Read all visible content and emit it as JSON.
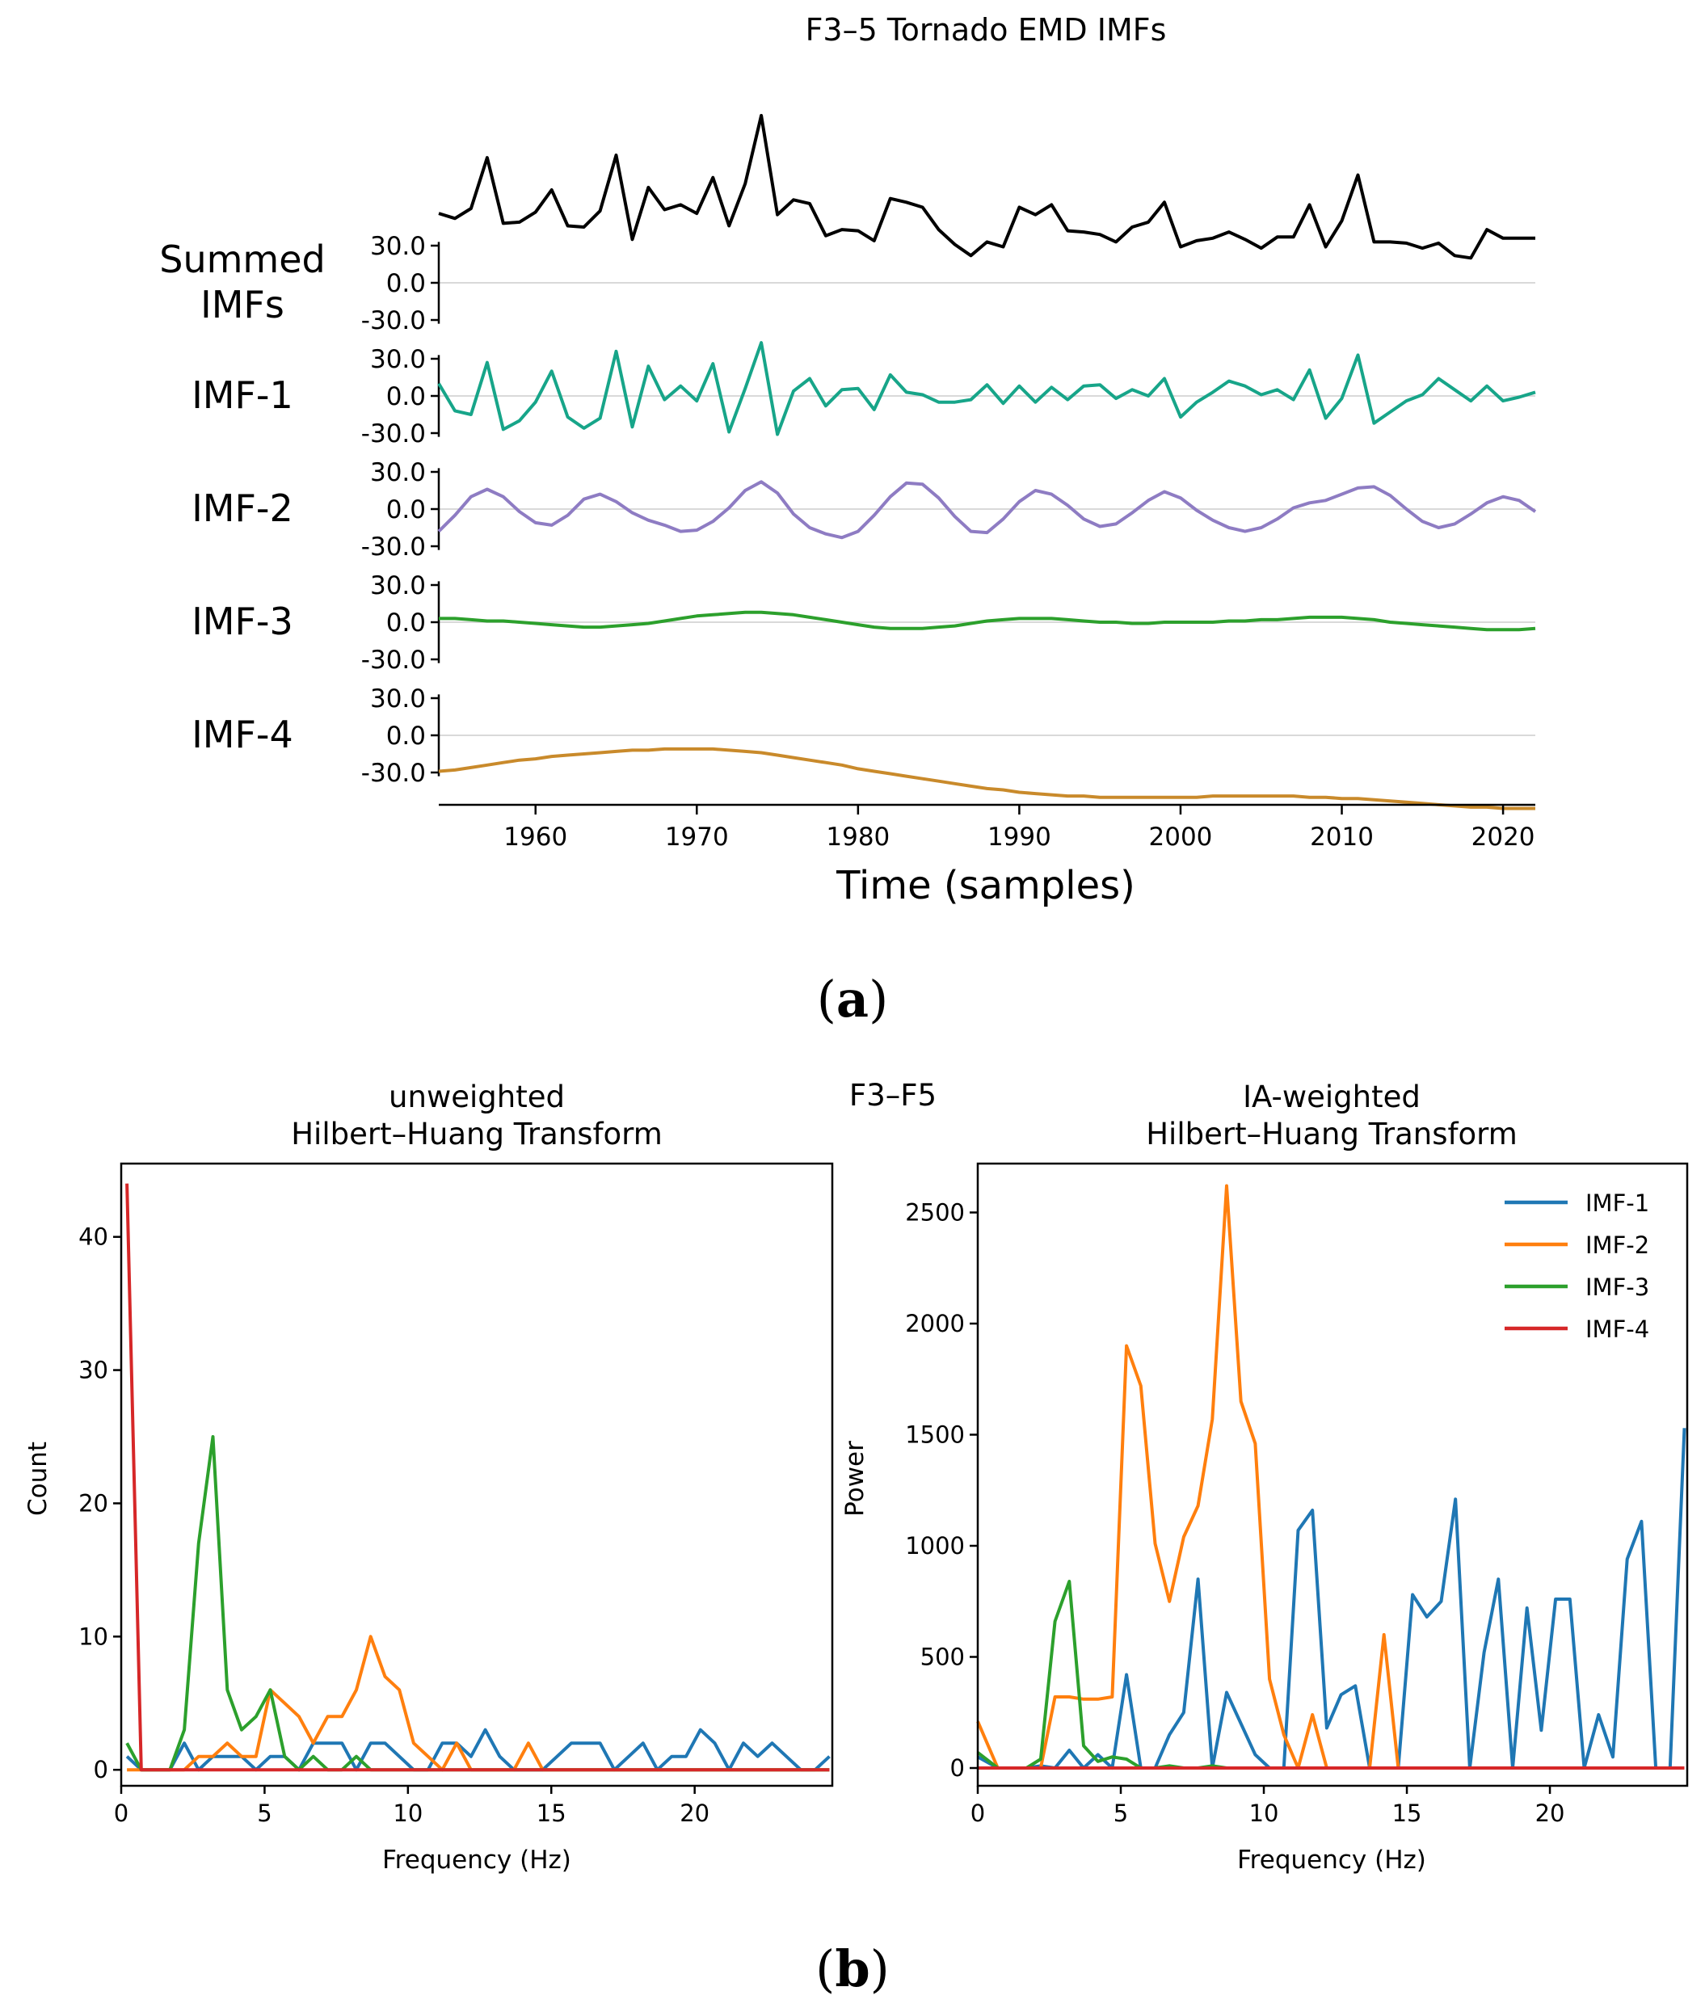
{
  "panel_labels": {
    "a": "a",
    "b": "b"
  },
  "colors": {
    "summed": "#000000",
    "imf1_top": "#17a589",
    "imf2_top": "#8e7cc3",
    "imf3_top": "#2ca02c",
    "imf4_top": "#c98a2b",
    "imf1": "#1f77b4",
    "imf2": "#ff7f0e",
    "imf3": "#2ca02c",
    "imf4": "#d62728",
    "zero_line": "#d9d9d9"
  },
  "chart_data": [
    {
      "type": "line",
      "title": "F3–5 Tornado EMD IMFs",
      "xlabel": "Time (samples)",
      "x_start": 1954,
      "x_end": 2022,
      "xlim": [
        1954,
        2022
      ],
      "xticks": [
        1960,
        1970,
        1980,
        1990,
        2000,
        2010,
        2020
      ],
      "yticks": [
        "30.0",
        "0.0",
        "-30.0"
      ],
      "ylim_per_row": [
        -33,
        33
      ],
      "rows": [
        {
          "key": "summed",
          "label_lines": [
            "Summed",
            "IMFs"
          ],
          "color_key": "summed",
          "values": [
            56,
            52,
            60,
            101,
            48,
            49,
            57,
            75,
            46,
            45,
            58,
            103,
            35,
            77,
            59,
            63,
            56,
            85,
            46,
            80,
            135,
            55,
            67,
            64,
            38,
            43,
            42,
            34,
            68,
            65,
            61,
            43,
            31,
            22,
            33,
            29,
            61,
            55,
            63,
            42,
            41,
            39,
            33,
            45,
            49,
            65,
            29,
            34,
            36,
            41,
            35,
            28,
            37,
            37,
            63,
            29,
            50,
            87,
            33,
            33,
            32,
            28,
            32,
            22,
            20,
            43,
            36,
            36,
            36
          ]
        },
        {
          "key": "imf1",
          "label_lines": [
            "IMF-1"
          ],
          "color_key": "imf1_top",
          "values": [
            10,
            -12,
            -15,
            27,
            -27,
            -20,
            -5,
            20,
            -17,
            -26,
            -18,
            36,
            -25,
            24,
            -3,
            8,
            -4,
            26,
            -29,
            6,
            43,
            -31,
            4,
            14,
            -8,
            5,
            6,
            -11,
            17,
            3,
            1,
            -5,
            -5,
            -3,
            9,
            -6,
            8,
            -5,
            7,
            -3,
            8,
            9,
            -2,
            5,
            0,
            14,
            -17,
            -5,
            3,
            12,
            8,
            1,
            5,
            -3,
            21,
            -18,
            -2,
            33,
            -22,
            -13,
            -4,
            1,
            14,
            5,
            -4,
            8,
            -4,
            -1,
            3
          ]
        },
        {
          "key": "imf2",
          "label_lines": [
            "IMF-2"
          ],
          "color_key": "imf2_top",
          "values": [
            -18,
            -5,
            10,
            16,
            10,
            -2,
            -11,
            -13,
            -5,
            8,
            12,
            6,
            -3,
            -9,
            -13,
            -18,
            -17,
            -10,
            1,
            15,
            22,
            13,
            -4,
            -15,
            -20,
            -23,
            -18,
            -5,
            10,
            21,
            20,
            9,
            -6,
            -18,
            -19,
            -8,
            6,
            15,
            12,
            3,
            -8,
            -14,
            -12,
            -3,
            7,
            14,
            9,
            -1,
            -9,
            -15,
            -18,
            -15,
            -8,
            1,
            5,
            7,
            12,
            17,
            18,
            11,
            0,
            -10,
            -15,
            -12,
            -4,
            5,
            10,
            7,
            -2
          ]
        },
        {
          "key": "imf3",
          "label_lines": [
            "IMF-3"
          ],
          "color_key": "imf3_top",
          "values": [
            3,
            3,
            2,
            1,
            1,
            0,
            -1,
            -2,
            -3,
            -4,
            -4,
            -3,
            -2,
            -1,
            1,
            3,
            5,
            6,
            7,
            8,
            8,
            7,
            6,
            4,
            2,
            0,
            -2,
            -4,
            -5,
            -5,
            -5,
            -4,
            -3,
            -1,
            1,
            2,
            3,
            3,
            3,
            2,
            1,
            0,
            0,
            -1,
            -1,
            0,
            0,
            0,
            0,
            1,
            1,
            2,
            2,
            3,
            4,
            4,
            4,
            3,
            2,
            0,
            -1,
            -2,
            -3,
            -4,
            -5,
            -6,
            -6,
            -6,
            -5
          ]
        },
        {
          "key": "imf4",
          "label_lines": [
            "IMF-4"
          ],
          "color_key": "imf4_top",
          "values": [
            -29,
            -28,
            -26,
            -24,
            -22,
            -20,
            -19,
            -17,
            -16,
            -15,
            -14,
            -13,
            -12,
            -12,
            -11,
            -11,
            -11,
            -11,
            -12,
            -13,
            -14,
            -16,
            -18,
            -20,
            -22,
            -24,
            -27,
            -29,
            -31,
            -33,
            -35,
            -37,
            -39,
            -41,
            -43,
            -44,
            -46,
            -47,
            -48,
            -49,
            -49,
            -50,
            -50,
            -50,
            -50,
            -50,
            -50,
            -50,
            -49,
            -49,
            -49,
            -49,
            -49,
            -49,
            -50,
            -50,
            -51,
            -51,
            -52,
            -53,
            -54,
            -55,
            -56,
            -57,
            -58,
            -58,
            -59,
            -59,
            -59
          ]
        }
      ]
    },
    {
      "type": "line",
      "suptitle": "F3–F5",
      "title_lines": [
        "unweighted",
        "Hilbert–Huang Transform"
      ],
      "xlabel": "Frequency (Hz)",
      "ylabel": "Count",
      "xlim": [
        0,
        24.8
      ],
      "ylim": [
        -1.2,
        45.5
      ],
      "xticks": [
        0,
        5,
        10,
        15,
        20
      ],
      "yticks": [
        0,
        10,
        20,
        30,
        40
      ],
      "x": [
        0.2,
        0.7,
        1.2,
        1.7,
        2.2,
        2.7,
        3.2,
        3.7,
        4.2,
        4.7,
        5.2,
        5.7,
        6.2,
        6.7,
        7.2,
        7.7,
        8.2,
        8.7,
        9.2,
        9.7,
        10.2,
        10.7,
        11.2,
        11.7,
        12.2,
        12.7,
        13.2,
        13.7,
        14.2,
        14.7,
        15.2,
        15.7,
        16.2,
        16.7,
        17.2,
        17.7,
        18.2,
        18.7,
        19.2,
        19.7,
        20.2,
        20.7,
        21.2,
        21.7,
        22.2,
        22.7,
        23.2,
        23.7,
        24.2,
        24.7
      ],
      "series": [
        {
          "name": "IMF-1",
          "color_key": "imf1",
          "values": [
            1,
            0,
            0,
            0,
            2,
            0,
            1,
            1,
            1,
            0,
            1,
            1,
            0,
            2,
            2,
            2,
            0,
            2,
            2,
            1,
            0,
            0,
            2,
            2,
            1,
            3,
            1,
            0,
            0,
            0,
            1,
            2,
            2,
            2,
            0,
            1,
            2,
            0,
            1,
            1,
            3,
            2,
            0,
            2,
            1,
            2,
            1,
            0,
            0,
            1
          ]
        },
        {
          "name": "IMF-2",
          "color_key": "imf2",
          "values": [
            0,
            0,
            0,
            0,
            0,
            1,
            1,
            2,
            1,
            1,
            6,
            5,
            4,
            2,
            4,
            4,
            6,
            10,
            7,
            6,
            2,
            1,
            0,
            2,
            0,
            0,
            0,
            0,
            2,
            0,
            0,
            0,
            0,
            0,
            0,
            0,
            0,
            0,
            0,
            0,
            0,
            0,
            0,
            0,
            0,
            0,
            0,
            0,
            0,
            0
          ]
        },
        {
          "name": "IMF-3",
          "color_key": "imf3",
          "values": [
            2,
            0,
            0,
            0,
            3,
            17,
            25,
            6,
            3,
            4,
            6,
            1,
            0,
            1,
            0,
            0,
            1,
            0,
            0,
            0,
            0,
            0,
            0,
            0,
            0,
            0,
            0,
            0,
            0,
            0,
            0,
            0,
            0,
            0,
            0,
            0,
            0,
            0,
            0,
            0,
            0,
            0,
            0,
            0,
            0,
            0,
            0,
            0,
            0,
            0
          ]
        },
        {
          "name": "IMF-4",
          "color_key": "imf4",
          "values": [
            44,
            0,
            0,
            0,
            0,
            0,
            0,
            0,
            0,
            0,
            0,
            0,
            0,
            0,
            0,
            0,
            0,
            0,
            0,
            0,
            0,
            0,
            0,
            0,
            0,
            0,
            0,
            0,
            0,
            0,
            0,
            0,
            0,
            0,
            0,
            0,
            0,
            0,
            0,
            0,
            0,
            0,
            0,
            0,
            0,
            0,
            0,
            0,
            0,
            0
          ]
        }
      ]
    },
    {
      "type": "line",
      "title_lines": [
        "IA-weighted",
        "Hilbert–Huang Transform"
      ],
      "xlabel": "Frequency (Hz)",
      "ylabel": "Power",
      "xlim": [
        0,
        24.8
      ],
      "ylim": [
        -80,
        2720
      ],
      "xticks": [
        0,
        5,
        10,
        15,
        20
      ],
      "yticks": [
        0,
        500,
        1000,
        1500,
        2000,
        2500
      ],
      "legend_position": "upper right",
      "x": [
        0.0,
        0.7,
        1.2,
        1.7,
        2.2,
        2.7,
        3.2,
        3.7,
        4.2,
        4.7,
        5.2,
        5.7,
        6.2,
        6.7,
        7.2,
        7.7,
        8.2,
        8.7,
        9.2,
        9.7,
        10.2,
        10.7,
        11.2,
        11.7,
        12.2,
        12.7,
        13.2,
        13.7,
        14.2,
        14.7,
        15.2,
        15.7,
        16.2,
        16.7,
        17.2,
        17.7,
        18.2,
        18.7,
        19.2,
        19.7,
        20.2,
        20.7,
        21.2,
        21.7,
        22.2,
        22.7,
        23.2,
        23.7,
        24.2,
        24.7
      ],
      "series": [
        {
          "name": "IMF-1",
          "color_key": "imf1",
          "values": [
            50,
            0,
            0,
            0,
            10,
            0,
            80,
            0,
            60,
            0,
            420,
            0,
            0,
            150,
            250,
            850,
            0,
            340,
            200,
            60,
            0,
            0,
            1070,
            1160,
            180,
            330,
            370,
            0,
            0,
            0,
            780,
            680,
            750,
            1210,
            0,
            520,
            850,
            0,
            720,
            170,
            760,
            760,
            0,
            240,
            50,
            940,
            1110,
            0,
            0,
            1530
          ]
        },
        {
          "name": "IMF-2",
          "color_key": "imf2",
          "values": [
            210,
            0,
            0,
            0,
            0,
            320,
            320,
            310,
            310,
            320,
            1900,
            1720,
            1010,
            750,
            1040,
            1180,
            1570,
            2620,
            1650,
            1460,
            400,
            150,
            0,
            240,
            0,
            0,
            0,
            0,
            600,
            0,
            0,
            0,
            0,
            0,
            0,
            0,
            0,
            0,
            0,
            0,
            0,
            0,
            0,
            0,
            0,
            0,
            0,
            0,
            0,
            0
          ]
        },
        {
          "name": "IMF-3",
          "color_key": "imf3",
          "values": [
            70,
            0,
            0,
            0,
            40,
            660,
            840,
            100,
            30,
            50,
            40,
            0,
            0,
            10,
            0,
            0,
            10,
            0,
            0,
            0,
            0,
            0,
            0,
            0,
            0,
            0,
            0,
            0,
            0,
            0,
            0,
            0,
            0,
            0,
            0,
            0,
            0,
            0,
            0,
            0,
            0,
            0,
            0,
            0,
            0,
            0,
            0,
            0,
            0,
            0
          ]
        },
        {
          "name": "IMF-4",
          "color_key": "imf4",
          "values": [
            0,
            0,
            0,
            0,
            0,
            0,
            0,
            0,
            0,
            0,
            0,
            0,
            0,
            0,
            0,
            0,
            0,
            0,
            0,
            0,
            0,
            0,
            0,
            0,
            0,
            0,
            0,
            0,
            0,
            0,
            0,
            0,
            0,
            0,
            0,
            0,
            0,
            0,
            0,
            0,
            0,
            0,
            0,
            0,
            0,
            0,
            0,
            0,
            0,
            0
          ]
        }
      ]
    }
  ]
}
